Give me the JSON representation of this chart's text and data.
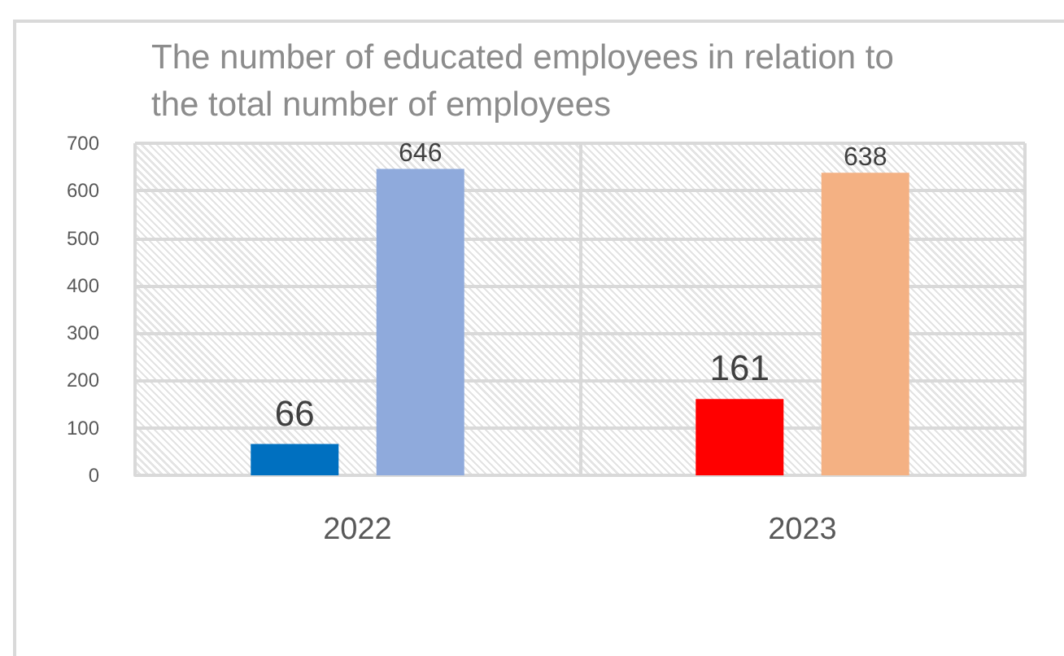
{
  "chart_data": {
    "type": "bar",
    "title": "The number of educated employees in relation to the total number of employees",
    "categories": [
      "2022",
      "2023"
    ],
    "series": [
      {
        "colors": [
          "#0070c0",
          "#ff0000"
        ],
        "values": [
          66,
          161
        ]
      },
      {
        "colors": [
          "#8faadc",
          "#f4b183"
        ],
        "values": [
          646,
          638
        ]
      }
    ],
    "ylim": [
      0,
      700
    ],
    "yticks": [
      0,
      100,
      200,
      300,
      400,
      500,
      600,
      700
    ],
    "grid": true,
    "data_labels": true
  }
}
